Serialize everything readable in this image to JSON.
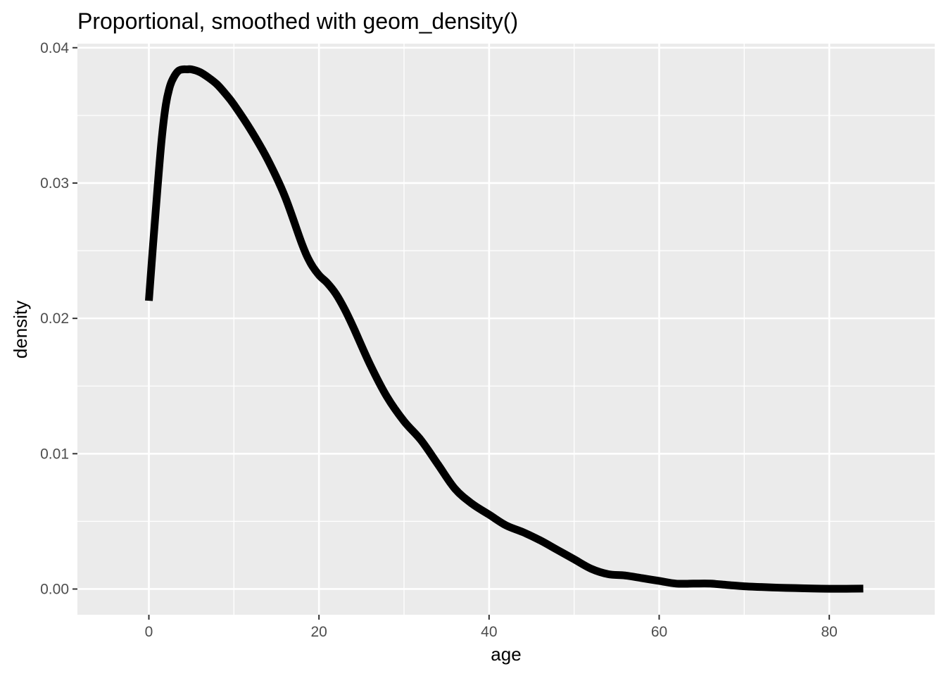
{
  "chart_data": {
    "type": "line",
    "title": "Proportional, smoothed with geom_density()",
    "xlabel": "age",
    "ylabel": "density",
    "xlim": [
      -8.4,
      92.4
    ],
    "ylim": [
      -0.0019,
      0.0403
    ],
    "xticks": [
      0,
      20,
      40,
      60,
      80
    ],
    "xtick_labels": [
      "0",
      "20",
      "40",
      "60",
      "80"
    ],
    "yticks": [
      0,
      0.01,
      0.02,
      0.03,
      0.04
    ],
    "ytick_labels": [
      "0.00",
      "0.01",
      "0.02",
      "0.03",
      "0.04"
    ],
    "grid": true,
    "series": [
      {
        "color": "#000000",
        "x": [
          0,
          0.5,
          1,
          1.5,
          2,
          2.5,
          3,
          3.5,
          4,
          4.5,
          5,
          6,
          7,
          8,
          9,
          10,
          12,
          14,
          16,
          18,
          19,
          20,
          21,
          22,
          23,
          24,
          26,
          28,
          30,
          32,
          34,
          36,
          38,
          40,
          42,
          44,
          46,
          48,
          50,
          52,
          54,
          56,
          58,
          60,
          62,
          64,
          66,
          68,
          70,
          72,
          74,
          76,
          78,
          80,
          82,
          84
        ],
        "y": [
          0.0213,
          0.0255,
          0.0295,
          0.0332,
          0.0358,
          0.0372,
          0.0379,
          0.0383,
          0.0384,
          0.0384,
          0.0384,
          0.0382,
          0.0378,
          0.0373,
          0.0366,
          0.0358,
          0.0339,
          0.0317,
          0.029,
          0.0255,
          0.0241,
          0.0232,
          0.0226,
          0.0218,
          0.0207,
          0.0194,
          0.0166,
          0.0142,
          0.0124,
          0.011,
          0.0092,
          0.0074,
          0.0063,
          0.0055,
          0.0047,
          0.0042,
          0.0036,
          0.0029,
          0.0022,
          0.0015,
          0.0011,
          0.001,
          0.0008,
          0.0006,
          0.0004,
          0.0004,
          0.0004,
          0.0003,
          0.0002,
          0.00015,
          0.0001,
          7e-05,
          4e-05,
          2e-05,
          2e-05,
          3e-05
        ]
      }
    ]
  }
}
